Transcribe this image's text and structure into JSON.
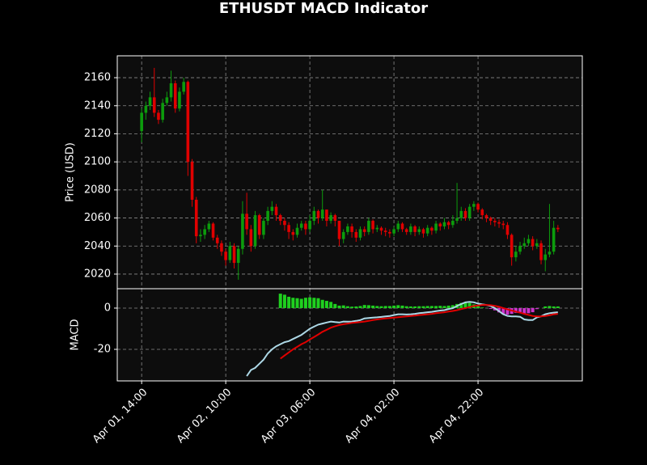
{
  "chart_data": [
    {
      "type": "candlestick",
      "title": "ETHUSDT MACD Indicator",
      "y_label": "Price (USD)",
      "up_color": "#0c9c0c",
      "down_color": "#e00000",
      "grid": true,
      "xlim": [
        -5.8,
        104.8
      ],
      "xticks": [
        {
          "value": 0,
          "label": "Apr 01, 14:00"
        },
        {
          "value": 20,
          "label": "Apr 02, 10:00"
        },
        {
          "value": 40,
          "label": "Apr 03, 06:00"
        },
        {
          "value": 60,
          "label": "Apr 04, 02:00"
        },
        {
          "value": 80,
          "label": "Apr 04, 22:00"
        }
      ],
      "ylim": [
        2009.6,
        2175.6
      ],
      "yticks": [
        2020,
        2040,
        2060,
        2080,
        2100,
        2120,
        2140,
        2160
      ],
      "x": [
        0,
        1,
        2,
        3,
        4,
        5,
        6,
        7,
        8,
        9,
        10,
        11,
        12,
        13,
        14,
        15,
        16,
        17,
        18,
        19,
        20,
        21,
        22,
        23,
        24,
        25,
        26,
        27,
        28,
        29,
        30,
        31,
        32,
        33,
        34,
        35,
        36,
        37,
        38,
        39,
        40,
        41,
        42,
        43,
        44,
        45,
        46,
        47,
        48,
        49,
        50,
        51,
        52,
        53,
        54,
        55,
        56,
        57,
        58,
        59,
        60,
        61,
        62,
        63,
        64,
        65,
        66,
        67,
        68,
        69,
        70,
        71,
        72,
        73,
        74,
        75,
        76,
        77,
        78,
        79,
        80,
        81,
        82,
        83,
        84,
        85,
        86,
        87,
        88,
        89,
        90,
        91,
        92,
        93,
        94,
        95,
        96,
        97,
        98,
        99
      ],
      "open": [
        2122,
        2135,
        2140,
        2146,
        2135,
        2130,
        2142,
        2146,
        2156,
        2138,
        2150,
        2157,
        2100,
        2073,
        2047,
        2048,
        2052,
        2056,
        2046,
        2042,
        2036,
        2030,
        2040,
        2028,
        2038,
        2063,
        2052,
        2040,
        2062,
        2048,
        2058,
        2065,
        2068,
        2062,
        2058,
        2055,
        2050,
        2048,
        2053,
        2056,
        2052,
        2058,
        2065,
        2060,
        2066,
        2058,
        2062,
        2058,
        2045,
        2050,
        2054,
        2050,
        2046,
        2052,
        2050,
        2058,
        2052,
        2053,
        2051,
        2050,
        2049,
        2052,
        2056,
        2052,
        2050,
        2054,
        2050,
        2052,
        2049,
        2053,
        2051,
        2056,
        2054,
        2057,
        2055,
        2058,
        2060,
        2065,
        2060,
        2068,
        2070,
        2066,
        2062,
        2060,
        2058,
        2057,
        2056,
        2055,
        2048,
        2032,
        2036,
        2040,
        2042,
        2045,
        2040,
        2042,
        2030,
        2034,
        2036,
        2053
      ],
      "high": [
        2138,
        2143,
        2150,
        2167,
        2137,
        2145,
        2150,
        2165,
        2158,
        2153,
        2160,
        2158,
        2102,
        2075,
        2052,
        2055,
        2058,
        2057,
        2048,
        2044,
        2038,
        2043,
        2042,
        2040,
        2072,
        2078,
        2055,
        2065,
        2063,
        2060,
        2068,
        2072,
        2070,
        2063,
        2060,
        2057,
        2052,
        2056,
        2058,
        2058,
        2062,
        2068,
        2066,
        2080,
        2066,
        2064,
        2063,
        2058,
        2052,
        2056,
        2056,
        2052,
        2054,
        2054,
        2060,
        2059,
        2055,
        2054,
        2053,
        2052,
        2054,
        2058,
        2057,
        2053,
        2056,
        2055,
        2054,
        2053,
        2055,
        2054,
        2058,
        2057,
        2060,
        2058,
        2062,
        2085,
        2068,
        2067,
        2070,
        2072,
        2071,
        2067,
        2063,
        2061,
        2060,
        2059,
        2058,
        2057,
        2049,
        2040,
        2043,
        2046,
        2048,
        2047,
        2045,
        2044,
        2038,
        2070,
        2058,
        2055
      ],
      "low": [
        2114,
        2130,
        2137,
        2132,
        2127,
        2128,
        2140,
        2143,
        2135,
        2136,
        2148,
        2090,
        2068,
        2042,
        2043,
        2045,
        2050,
        2044,
        2038,
        2033,
        2026,
        2028,
        2024,
        2016,
        2034,
        2048,
        2036,
        2038,
        2045,
        2045,
        2055,
        2062,
        2058,
        2055,
        2051,
        2045,
        2044,
        2046,
        2051,
        2048,
        2050,
        2055,
        2056,
        2058,
        2054,
        2056,
        2054,
        2040,
        2042,
        2048,
        2046,
        2043,
        2044,
        2047,
        2048,
        2049,
        2050,
        2048,
        2047,
        2046,
        2047,
        2050,
        2050,
        2048,
        2048,
        2047,
        2048,
        2046,
        2047,
        2048,
        2049,
        2051,
        2052,
        2052,
        2053,
        2056,
        2058,
        2058,
        2058,
        2065,
        2064,
        2059,
        2057,
        2055,
        2054,
        2053,
        2052,
        2045,
        2026,
        2029,
        2034,
        2038,
        2040,
        2037,
        2038,
        2027,
        2022,
        2032,
        2034,
        2050
      ],
      "close": [
        2135,
        2140,
        2146,
        2135,
        2130,
        2142,
        2146,
        2156,
        2138,
        2150,
        2157,
        2100,
        2073,
        2047,
        2048,
        2052,
        2056,
        2046,
        2042,
        2036,
        2030,
        2040,
        2028,
        2038,
        2063,
        2052,
        2040,
        2062,
        2048,
        2058,
        2065,
        2068,
        2062,
        2058,
        2055,
        2050,
        2048,
        2053,
        2056,
        2052,
        2058,
        2065,
        2060,
        2066,
        2058,
        2062,
        2058,
        2045,
        2050,
        2054,
        2050,
        2046,
        2052,
        2050,
        2058,
        2052,
        2053,
        2051,
        2050,
        2049,
        2052,
        2056,
        2052,
        2050,
        2054,
        2050,
        2052,
        2049,
        2053,
        2051,
        2056,
        2054,
        2057,
        2055,
        2058,
        2060,
        2065,
        2060,
        2068,
        2070,
        2066,
        2062,
        2060,
        2058,
        2057,
        2056,
        2055,
        2048,
        2032,
        2036,
        2040,
        2042,
        2045,
        2040,
        2042,
        2030,
        2034,
        2036,
        2053,
        2052
      ]
    },
    {
      "type": "macd",
      "y_label": "MACD",
      "grid": true,
      "ylim": [
        -35.3,
        9.4
      ],
      "yticks": [
        -20,
        0
      ],
      "series": [
        {
          "kind": "bar",
          "positive_color": "#1fd01f",
          "negative_color": "#cc33cc",
          "values": [
            null,
            null,
            null,
            null,
            null,
            null,
            null,
            null,
            null,
            null,
            null,
            null,
            null,
            null,
            null,
            null,
            null,
            null,
            null,
            null,
            null,
            null,
            null,
            null,
            null,
            null,
            null,
            null,
            null,
            null,
            null,
            null,
            null,
            7,
            6.5,
            5.5,
            5,
            4.8,
            4.5,
            5,
            5.2,
            5,
            4.8,
            4,
            3.5,
            3,
            2,
            1.2,
            1.3,
            0.9,
            0.7,
            0.8,
            1,
            1.5,
            1.4,
            1.2,
            1,
            0.9,
            1,
            1,
            1.2,
            1.4,
            1.2,
            0.9,
            0.8,
            0.8,
            0.9,
            0.9,
            1,
            1,
            1,
            1.1,
            1,
            1.2,
            1.4,
            2,
            2.5,
            2.8,
            2.5,
            1.8,
            0.9,
            0.3,
            0,
            -0.4,
            -1.1,
            -2.1,
            -3,
            -3.2,
            -2.8,
            -2.3,
            -2,
            -2.7,
            -2.5,
            -2,
            -0.5,
            0,
            0.8,
            1,
            0.8,
            0.8
          ]
        },
        {
          "kind": "line",
          "color": "#add8e6",
          "values": [
            null,
            null,
            null,
            null,
            null,
            null,
            null,
            null,
            null,
            null,
            null,
            null,
            null,
            null,
            null,
            null,
            null,
            null,
            null,
            null,
            null,
            null,
            null,
            null,
            null,
            -33,
            -30,
            -29,
            -27,
            -25,
            -22,
            -20,
            -18.5,
            -17.5,
            -16.5,
            -16,
            -15,
            -14,
            -13,
            -11.5,
            -10,
            -9,
            -8,
            -7.5,
            -7,
            -6.5,
            -6.8,
            -7,
            -6.5,
            -6.6,
            -6.5,
            -6.2,
            -5.8,
            -5,
            -4.8,
            -4.6,
            -4.5,
            -4.3,
            -4,
            -3.8,
            -3.4,
            -3,
            -3,
            -3.1,
            -3,
            -2.8,
            -2.5,
            -2.3,
            -2,
            -1.8,
            -1.5,
            -1.2,
            -1,
            -0.5,
            0,
            1,
            2,
            2.8,
            3,
            2.8,
            2.2,
            1.8,
            1.5,
            1,
            0,
            -1.5,
            -3,
            -3.8,
            -4,
            -4,
            -4.2,
            -5.5,
            -5.8,
            -5.8,
            -4.5,
            -4,
            -3,
            -2.5,
            -2.2,
            -2
          ]
        },
        {
          "kind": "line",
          "color": "#e00000",
          "values": [
            null,
            null,
            null,
            null,
            null,
            null,
            null,
            null,
            null,
            null,
            null,
            null,
            null,
            null,
            null,
            null,
            null,
            null,
            null,
            null,
            null,
            null,
            null,
            null,
            null,
            null,
            null,
            null,
            null,
            null,
            null,
            null,
            null,
            -24.5,
            -23,
            -21.5,
            -20,
            -18.8,
            -17.5,
            -16.5,
            -15.2,
            -14,
            -12.8,
            -11.5,
            -10.5,
            -9.5,
            -8.8,
            -8.2,
            -7.8,
            -7.5,
            -7.2,
            -7,
            -6.8,
            -6.5,
            -6.2,
            -5.8,
            -5.5,
            -5.2,
            -5,
            -4.8,
            -4.6,
            -4.4,
            -4.2,
            -4,
            -3.8,
            -3.6,
            -3.4,
            -3.2,
            -3,
            -2.8,
            -2.5,
            -2.3,
            -2,
            -1.7,
            -1.4,
            -1,
            -0.5,
            0,
            0.5,
            1,
            1.3,
            1.5,
            1.5,
            1.4,
            1.1,
            0.6,
            0,
            -0.6,
            -1.2,
            -1.7,
            -2.2,
            -2.8,
            -3.3,
            -3.8,
            -4,
            -4,
            -3.8,
            -3.5,
            -3,
            -2.8
          ]
        }
      ]
    }
  ]
}
